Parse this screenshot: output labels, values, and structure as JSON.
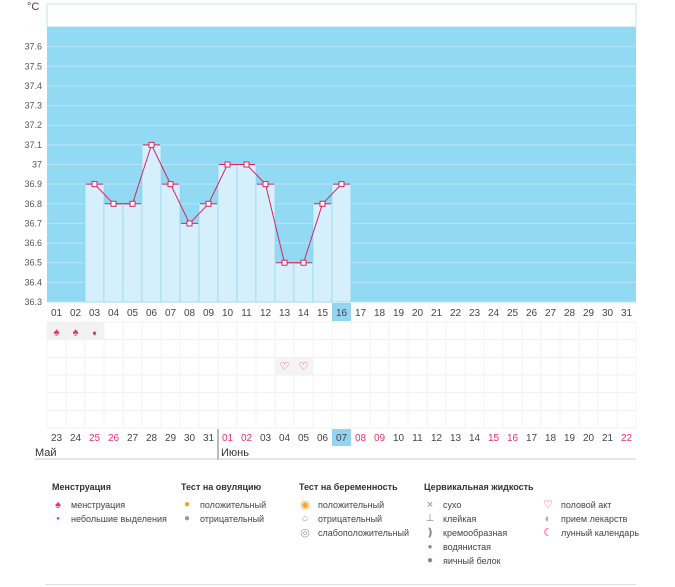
{
  "chart_data": {
    "type": "bar",
    "unit": "°C",
    "ylim": [
      36.3,
      37.7
    ],
    "yticks": [
      "36.3",
      "36.4",
      "36.5",
      "36.6",
      "36.7",
      "36.8",
      "36.9",
      "37",
      "37.1",
      "37.2",
      "37.3",
      "37.4",
      "37.5",
      "37.6"
    ],
    "cycle_days": [
      "01",
      "02",
      "03",
      "04",
      "05",
      "06",
      "07",
      "08",
      "09",
      "10",
      "11",
      "12",
      "13",
      "14",
      "15",
      "16",
      "17",
      "18",
      "19",
      "20",
      "21",
      "22",
      "23",
      "24",
      "25",
      "26",
      "27",
      "28",
      "29",
      "30",
      "31"
    ],
    "current_cycle_day": "16",
    "temperatures": [
      null,
      null,
      36.9,
      36.8,
      36.8,
      37.1,
      36.9,
      36.7,
      36.8,
      37.0,
      37.0,
      36.9,
      36.5,
      36.5,
      36.8,
      36.9,
      null,
      null,
      null,
      null,
      null,
      null,
      null,
      null,
      null,
      null,
      null,
      null,
      null,
      null,
      null
    ],
    "dates": [
      "23",
      "24",
      "25",
      "26",
      "27",
      "28",
      "29",
      "30",
      "31",
      "01",
      "02",
      "03",
      "04",
      "05",
      "06",
      "07",
      "08",
      "09",
      "10",
      "11",
      "12",
      "13",
      "14",
      "15",
      "16",
      "17",
      "18",
      "19",
      "20",
      "21",
      "22"
    ],
    "red_dates_idx": [
      2,
      3,
      9,
      10,
      16,
      17,
      23,
      24,
      30
    ],
    "current_date": "07",
    "menstruation_marks": [
      2,
      2,
      1
    ],
    "heart_marks_idx": [
      12,
      13
    ],
    "months": [
      {
        "label": "Май"
      },
      {
        "label": "Июнь"
      }
    ]
  },
  "colors": {
    "plot_bg": "#92d9f4",
    "bar": "#d5f0fc",
    "bar_edge": "#7fcbe9",
    "line": "#d8255f",
    "accent_pink": "#e8336b",
    "highlight": "#92d4f1"
  },
  "legend": {
    "groups": [
      {
        "title": "Менструация",
        "items": [
          {
            "icon": "drop-double-icon",
            "label": "менструация"
          },
          {
            "icon": "drop-small-icon",
            "label": "небольшие выделения"
          }
        ]
      },
      {
        "title": "Тест на овуляцию",
        "items": [
          {
            "icon": "ovulation-positive-icon",
            "label": "положительный"
          },
          {
            "icon": "ovulation-negative-icon",
            "label": "отрицательный"
          }
        ]
      },
      {
        "title": "Тест на беременность",
        "items": [
          {
            "icon": "pregnancy-positive-icon",
            "label": "положительный"
          },
          {
            "icon": "pregnancy-negative-icon",
            "label": "отрицательный"
          },
          {
            "icon": "pregnancy-weak-icon",
            "label": "слабоположительный"
          }
        ]
      },
      {
        "title": "Цервикальная жидкость",
        "items": [
          {
            "icon": "dry-icon",
            "label": "сухо"
          },
          {
            "icon": "sticky-icon",
            "label": "клейкая"
          },
          {
            "icon": "creamy-icon",
            "label": "кремообразная"
          },
          {
            "icon": "watery-icon",
            "label": "водянистая"
          },
          {
            "icon": "egg-white-icon",
            "label": "яичный белок"
          }
        ]
      },
      {
        "title": "",
        "items": [
          {
            "icon": "heart-icon",
            "label": "половой акт"
          },
          {
            "icon": "pill-icon",
            "label": "прием лекарств"
          },
          {
            "icon": "moon-icon",
            "label": "лунный календарь"
          }
        ]
      }
    ]
  }
}
